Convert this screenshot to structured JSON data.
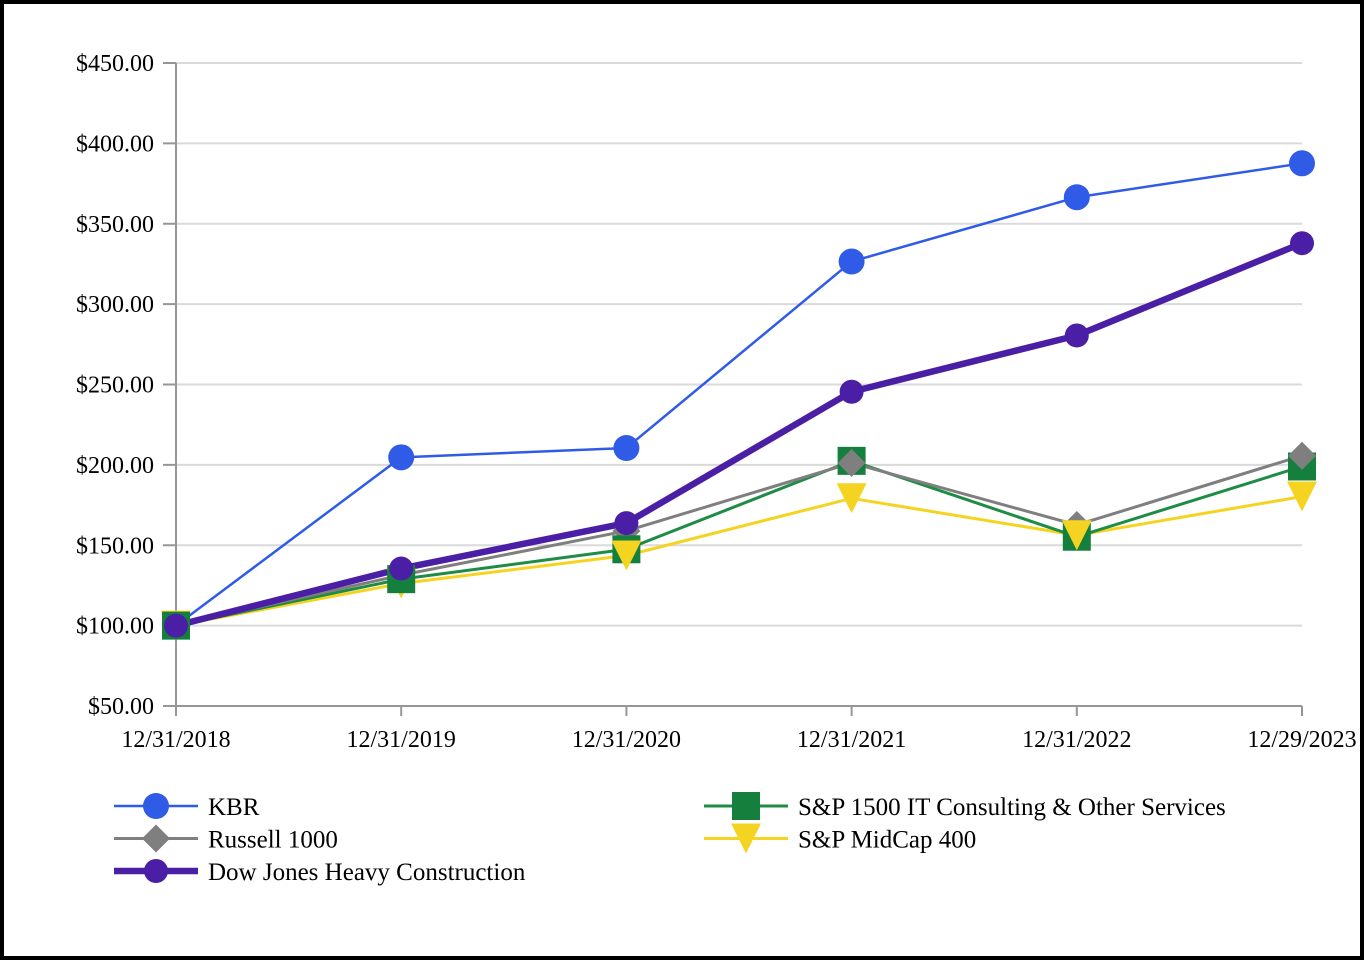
{
  "page": {
    "background_color": "#FFFFFF",
    "border_color": "#000000",
    "title": ""
  },
  "chart_data": {
    "type": "line",
    "title": "",
    "xlabel": "",
    "ylabel": "",
    "categories": [
      "12/31/2018",
      "12/31/2019",
      "12/31/2020",
      "12/31/2021",
      "12/31/2022",
      "12/29/2023"
    ],
    "series": [
      {
        "id": "kbr",
        "name": "KBR",
        "color": "#2F5BE7",
        "marker_color": "#2F5BE7",
        "marker": "circle",
        "line_width": 2.5,
        "values": [
          100.0,
          204.7,
          210.5,
          326.5,
          366.5,
          387.6
        ]
      },
      {
        "id": "russell",
        "name": "Russell 1000",
        "color": "#7F7F7F",
        "marker_color": "#7F7F7F",
        "marker": "diamond",
        "line_width": 3,
        "values": [
          100.0,
          131.4,
          158.9,
          201.2,
          162.6,
          205.7
        ]
      },
      {
        "id": "dowjones",
        "name": "Dow Jones Heavy Construction",
        "color": "#4A1FA5",
        "marker_color": "#4A1FA5",
        "marker": "circle",
        "line_width": 6.5,
        "values": [
          100.0,
          135.5,
          163.8,
          245.5,
          280.5,
          337.9
        ]
      },
      {
        "id": "sp1500",
        "name": "S&P 1500 IT Consulting & Other Services",
        "color": "#1E8C44",
        "marker_color": "#157F3E",
        "marker": "square",
        "line_width": 3,
        "values": [
          100.0,
          128.9,
          147.5,
          202.5,
          155.3,
          199.0
        ]
      },
      {
        "id": "midcap",
        "name": "S&P MidCap 400",
        "color": "#F5D421",
        "marker_color": "#F5D421",
        "marker": "triangle-down",
        "line_width": 3,
        "values": [
          100.0,
          126.2,
          143.6,
          179.2,
          156.2,
          180.3
        ]
      }
    ],
    "ylim": [
      50,
      450
    ],
    "ytick_step": 50,
    "yticks": [
      {
        "value": 450,
        "label": "$450.00"
      },
      {
        "value": 400,
        "label": "$400.00"
      },
      {
        "value": 350,
        "label": "$350.00"
      },
      {
        "value": 300,
        "label": "$300.00"
      },
      {
        "value": 250,
        "label": "$250.00"
      },
      {
        "value": 200,
        "label": "$200.00"
      },
      {
        "value": 150,
        "label": "$150.00"
      },
      {
        "value": 100,
        "label": "$100.00"
      },
      {
        "value": 50,
        "label": "$50.00"
      }
    ],
    "grid": "horizontal",
    "gridline_color": "#DADADA",
    "axis_color": "#969696",
    "legend_position": "bottom",
    "legend_columns": {
      "left": [
        "kbr",
        "russell",
        "dowjones"
      ],
      "right": [
        "sp1500",
        "midcap"
      ]
    }
  }
}
